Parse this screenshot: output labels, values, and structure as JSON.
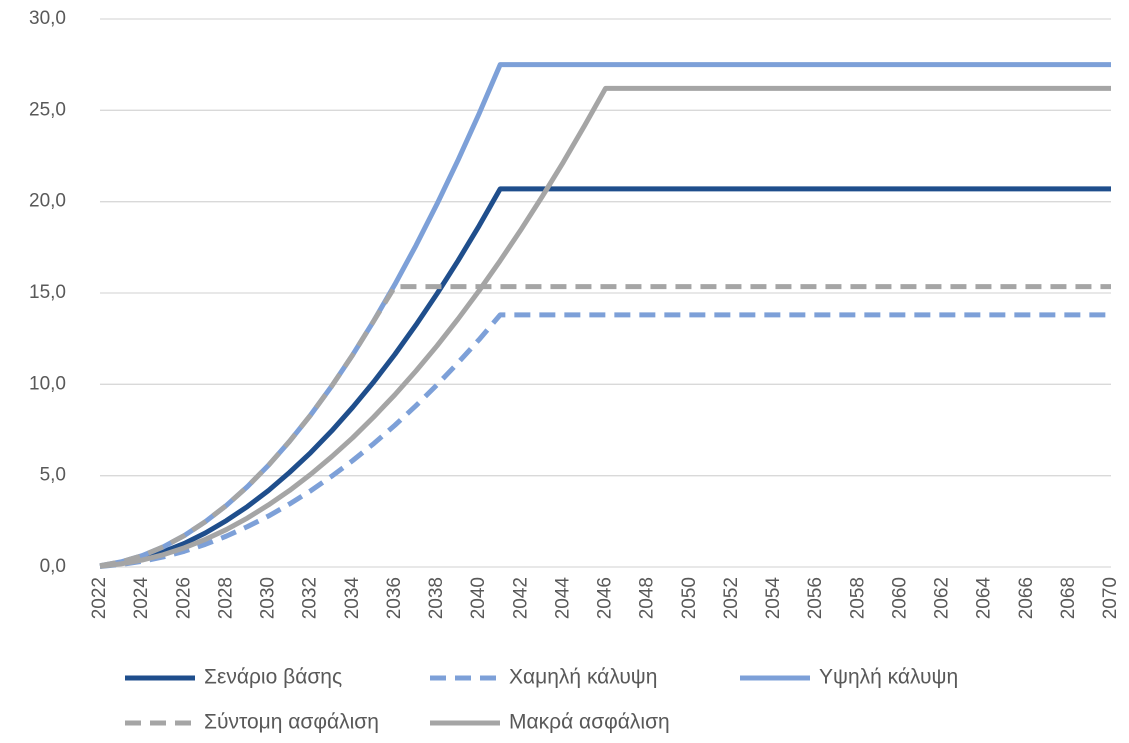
{
  "chart_data": {
    "type": "line",
    "x": [
      2022,
      2023,
      2024,
      2025,
      2026,
      2027,
      2028,
      2029,
      2030,
      2031,
      2032,
      2033,
      2034,
      2035,
      2036,
      2037,
      2038,
      2039,
      2040,
      2041,
      2042,
      2043,
      2044,
      2045,
      2046,
      2047,
      2048,
      2049,
      2050,
      2051,
      2052,
      2053,
      2054,
      2055,
      2056,
      2057,
      2058,
      2059,
      2060,
      2061,
      2062,
      2063,
      2064,
      2065,
      2066,
      2067,
      2068,
      2069,
      2070
    ],
    "xlim": [
      2022,
      2070
    ],
    "xticks": [
      2022,
      2024,
      2026,
      2028,
      2030,
      2032,
      2034,
      2036,
      2038,
      2040,
      2042,
      2044,
      2046,
      2048,
      2050,
      2052,
      2054,
      2056,
      2058,
      2060,
      2062,
      2064,
      2066,
      2068,
      2070
    ],
    "ylim": [
      0,
      30
    ],
    "yticks": [
      {
        "value": 0,
        "label": "0,0"
      },
      {
        "value": 5,
        "label": "5,0"
      },
      {
        "value": 10,
        "label": "10,0"
      },
      {
        "value": 15,
        "label": "15,0"
      },
      {
        "value": 20,
        "label": "20,0"
      },
      {
        "value": 25,
        "label": "25,0"
      },
      {
        "value": 30,
        "label": "30,0"
      }
    ],
    "grid": true,
    "legend": "bottom",
    "series": [
      {
        "name": "Σενάριο βάσης",
        "color": "#1f4e8c",
        "dashed": false,
        "values": [
          0.05,
          0.21,
          0.47,
          0.83,
          1.29,
          1.86,
          2.54,
          3.31,
          4.19,
          5.18,
          6.26,
          7.45,
          8.75,
          10.14,
          11.64,
          13.25,
          14.96,
          16.77,
          18.68,
          20.7,
          20.7,
          20.7,
          20.7,
          20.7,
          20.7,
          20.7,
          20.7,
          20.7,
          20.7,
          20.7,
          20.7,
          20.7,
          20.7,
          20.7,
          20.7,
          20.7,
          20.7,
          20.7,
          20.7,
          20.7,
          20.7,
          20.7,
          20.7,
          20.7,
          20.7,
          20.7,
          20.7,
          20.7,
          20.7
        ]
      },
      {
        "name": "Χαμηλή κάλυψη",
        "color": "#7da0d8",
        "dashed": true,
        "values": [
          0.03,
          0.14,
          0.31,
          0.55,
          0.86,
          1.24,
          1.69,
          2.21,
          2.79,
          3.45,
          4.17,
          4.97,
          5.83,
          6.76,
          7.76,
          8.83,
          9.97,
          11.18,
          12.45,
          13.8,
          13.8,
          13.8,
          13.8,
          13.8,
          13.8,
          13.8,
          13.8,
          13.8,
          13.8,
          13.8,
          13.8,
          13.8,
          13.8,
          13.8,
          13.8,
          13.8,
          13.8,
          13.8,
          13.8,
          13.8,
          13.8,
          13.8,
          13.8,
          13.8,
          13.8,
          13.8,
          13.8,
          13.8,
          13.8
        ]
      },
      {
        "name": "Υψηλή κάλυψη",
        "color": "#7da0d8",
        "dashed": false,
        "values": [
          0.07,
          0.28,
          0.62,
          1.1,
          1.72,
          2.48,
          3.37,
          4.4,
          5.57,
          6.88,
          8.32,
          9.9,
          11.62,
          13.48,
          15.47,
          17.6,
          19.87,
          22.28,
          24.82,
          27.5,
          27.5,
          27.5,
          27.5,
          27.5,
          27.5,
          27.5,
          27.5,
          27.5,
          27.5,
          27.5,
          27.5,
          27.5,
          27.5,
          27.5,
          27.5,
          27.5,
          27.5,
          27.5,
          27.5,
          27.5,
          27.5,
          27.5,
          27.5,
          27.5,
          27.5,
          27.5,
          27.5,
          27.5,
          27.5
        ]
      },
      {
        "name": "Σύντομη ασφάλιση",
        "color": "#a5a5a5",
        "dashed": true,
        "values": [
          0.07,
          0.28,
          0.62,
          1.1,
          1.72,
          2.48,
          3.37,
          4.4,
          5.57,
          6.88,
          8.32,
          9.9,
          11.62,
          13.48,
          15.35,
          15.35,
          15.35,
          15.35,
          15.35,
          15.35,
          15.35,
          15.35,
          15.35,
          15.35,
          15.35,
          15.35,
          15.35,
          15.35,
          15.35,
          15.35,
          15.35,
          15.35,
          15.35,
          15.35,
          15.35,
          15.35,
          15.35,
          15.35,
          15.35,
          15.35,
          15.35,
          15.35,
          15.35,
          15.35,
          15.35,
          15.35,
          15.35,
          15.35,
          15.35
        ]
      },
      {
        "name": "Μακρά ασφάλιση",
        "color": "#a5a5a5",
        "dashed": false,
        "values": [
          0.04,
          0.17,
          0.38,
          0.67,
          1.05,
          1.51,
          2.05,
          2.68,
          3.4,
          4.19,
          5.07,
          6.04,
          7.08,
          8.22,
          9.43,
          10.73,
          12.11,
          13.58,
          15.13,
          16.77,
          18.49,
          20.29,
          22.17,
          24.15,
          26.2,
          26.2,
          26.2,
          26.2,
          26.2,
          26.2,
          26.2,
          26.2,
          26.2,
          26.2,
          26.2,
          26.2,
          26.2,
          26.2,
          26.2,
          26.2,
          26.2,
          26.2,
          26.2,
          26.2,
          26.2,
          26.2,
          26.2,
          26.2,
          26.2
        ]
      }
    ]
  }
}
